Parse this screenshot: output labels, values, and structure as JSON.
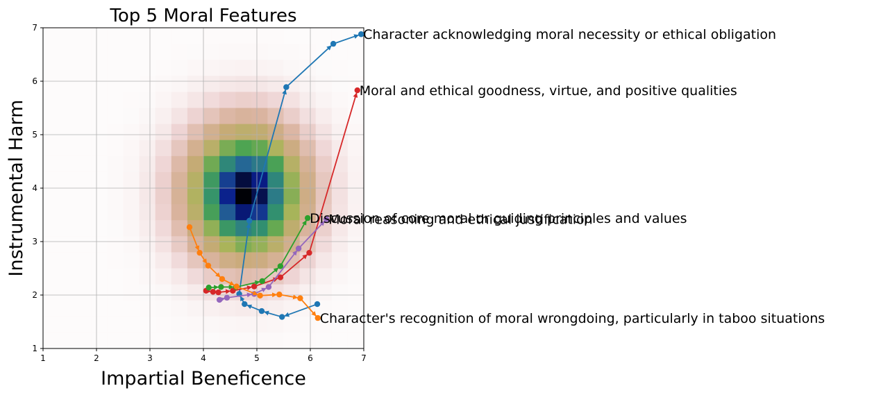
{
  "chart_data": {
    "type": "line",
    "title": "Top 5 Moral Features",
    "xlabel": "Impartial Beneficence",
    "ylabel": "Instrumental Harm",
    "xlim": [
      1,
      7
    ],
    "ylim": [
      1,
      7
    ],
    "xticks": [
      "1",
      "2",
      "3",
      "4",
      "5",
      "6",
      "7"
    ],
    "yticks": [
      "1",
      "2",
      "3",
      "4",
      "5",
      "6",
      "7"
    ],
    "grid": true,
    "legend": "none",
    "background": {
      "type": "heatmap",
      "center": [
        4.8,
        3.9
      ],
      "sigma": [
        0.75,
        0.85
      ],
      "colormap": "gist_earth_r"
    },
    "series": [
      {
        "color": "#1f77b4",
        "points": [
          [
            6.13,
            1.83
          ],
          [
            5.47,
            1.59
          ],
          [
            5.09,
            1.7
          ],
          [
            4.77,
            1.83
          ],
          [
            4.67,
            2.02
          ],
          [
            4.86,
            3.39
          ],
          [
            5.55,
            5.89
          ],
          [
            6.43,
            6.7
          ],
          [
            6.95,
            6.88
          ]
        ],
        "label": "Character acknowledging moral necessity or ethical obligation"
      },
      {
        "color": "#d62728",
        "points": [
          [
            4.05,
            2.08
          ],
          [
            4.18,
            2.06
          ],
          [
            4.28,
            2.05
          ],
          [
            4.55,
            2.08
          ],
          [
            4.95,
            2.16
          ],
          [
            5.44,
            2.33
          ],
          [
            5.98,
            2.79
          ],
          [
            6.88,
            5.83
          ]
        ],
        "label": "Moral and ethical goodness, virtue, and positive qualities"
      },
      {
        "color": "#2ca02c",
        "points": [
          [
            4.1,
            2.14
          ],
          [
            4.33,
            2.15
          ],
          [
            4.61,
            2.15
          ],
          [
            5.1,
            2.26
          ],
          [
            5.44,
            2.54
          ],
          [
            5.95,
            3.44
          ]
        ],
        "label": "Discussion of core moral or guiding principles and values"
      },
      {
        "color": "#9467bd",
        "points": [
          [
            4.3,
            1.91
          ],
          [
            4.44,
            1.95
          ],
          [
            4.95,
            2.02
          ],
          [
            5.22,
            2.15
          ],
          [
            5.78,
            2.87
          ],
          [
            6.3,
            3.42
          ]
        ],
        "label": "Moral reasoning and ethical justification"
      },
      {
        "color": "#ff7f0e",
        "points": [
          [
            3.74,
            3.27
          ],
          [
            3.93,
            2.79
          ],
          [
            4.09,
            2.55
          ],
          [
            4.35,
            2.3
          ],
          [
            4.62,
            2.16
          ],
          [
            5.06,
            1.99
          ],
          [
            5.42,
            2.01
          ],
          [
            5.81,
            1.94
          ],
          [
            6.14,
            1.57
          ]
        ],
        "label": "Character's recognition of moral wrongdoing, particularly in taboo situations"
      }
    ]
  }
}
